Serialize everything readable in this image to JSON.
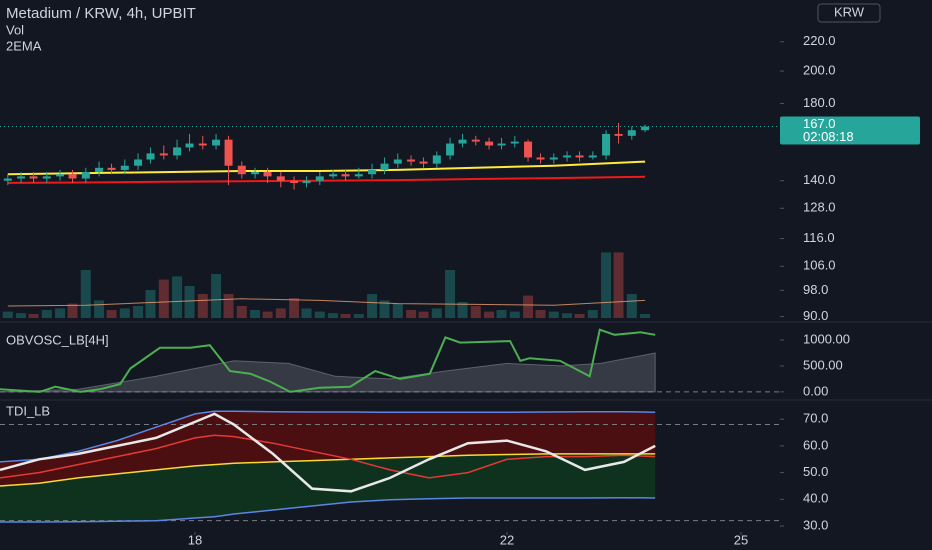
{
  "chart_data": [
    {
      "type": "candlestick",
      "title": "Metadium / KRW, 4h, UPBIT",
      "indicators": [
        "Vol",
        "2EMA"
      ],
      "currency": "KRW",
      "log": true,
      "ylim": [
        89,
        252
      ],
      "yticks": [
        {
          "value": 220,
          "label": "220.0"
        },
        {
          "value": 200,
          "label": "200.0"
        },
        {
          "value": 180,
          "label": "180.0"
        },
        {
          "value": 140,
          "label": "140.0"
        },
        {
          "value": 128,
          "label": "128.0"
        },
        {
          "value": 116,
          "label": "116.0"
        },
        {
          "value": 106,
          "label": "106.0"
        },
        {
          "value": 98,
          "label": "98.0"
        },
        {
          "value": 90,
          "label": "90.0"
        }
      ],
      "up_color": "#26a69a",
      "down_color": "#ef5350",
      "x": [
        15.6,
        15.77,
        15.93,
        16.1,
        16.27,
        16.43,
        16.6,
        16.77,
        16.93,
        17.1,
        17.27,
        17.43,
        17.6,
        17.77,
        17.93,
        18.1,
        18.27,
        18.43,
        18.6,
        18.77,
        18.93,
        19.1,
        19.27,
        19.43,
        19.6,
        19.77,
        19.93,
        20.1,
        20.27,
        20.43,
        20.6,
        20.77,
        20.93,
        21.1,
        21.27,
        21.43,
        21.6,
        21.77,
        21.93,
        22.1,
        22.27,
        22.43,
        22.6,
        22.77,
        22.93,
        23.1,
        23.27,
        23.43,
        23.6,
        23.77
      ],
      "open": [
        140,
        141,
        142,
        141,
        142,
        143,
        141,
        144,
        146,
        145,
        147,
        150,
        153,
        152,
        156,
        158,
        157,
        160,
        147,
        143,
        144,
        142,
        140,
        139,
        140,
        142,
        143,
        142,
        143,
        145,
        148,
        150,
        149,
        148,
        152,
        158,
        160,
        159,
        157,
        158,
        159,
        151,
        150,
        151,
        152,
        151,
        152,
        163,
        162,
        165
      ],
      "high": [
        143,
        144,
        144,
        144,
        145,
        145,
        146,
        149,
        148,
        150,
        153,
        156,
        157,
        160,
        163,
        162,
        163,
        162,
        149,
        146,
        146,
        144,
        142,
        142,
        144,
        145,
        145,
        146,
        148,
        151,
        153,
        152,
        151,
        154,
        161,
        163,
        162,
        161,
        161,
        162,
        160,
        153,
        153,
        154,
        154,
        154,
        165,
        169,
        167,
        168
      ],
      "low": [
        138,
        139,
        139,
        139,
        140,
        139,
        139,
        142,
        143,
        143,
        145,
        148,
        150,
        150,
        154,
        155,
        155,
        138,
        141,
        141,
        139,
        137,
        136,
        137,
        138,
        141,
        140,
        141,
        141,
        143,
        146,
        147,
        146,
        146,
        150,
        156,
        157,
        155,
        155,
        156,
        149,
        148,
        148,
        149,
        149,
        150,
        150,
        158,
        160,
        164
      ],
      "close": [
        141,
        142,
        141,
        142,
        143,
        141,
        144,
        146,
        145,
        147,
        150,
        153,
        152,
        156,
        158,
        157,
        160,
        147,
        143,
        144,
        142,
        140,
        139,
        140,
        142,
        143,
        142,
        143,
        145,
        148,
        150,
        149,
        148,
        152,
        158,
        160,
        159,
        157,
        158,
        159,
        151,
        150,
        151,
        152,
        151,
        152,
        163,
        162,
        165,
        167
      ],
      "last_label": "167.0",
      "countdown": "02:08:18",
      "series": [
        {
          "color": "#ffeb3b",
          "x": [
            15.6,
            16.6,
            17.6,
            18.6,
            19.6,
            20.6,
            21.6,
            22.6,
            23.77
          ],
          "values": [
            143,
            143.5,
            144,
            144.5,
            144.5,
            145,
            146,
            147,
            149
          ]
        },
        {
          "color": "#f01818",
          "x": [
            15.6,
            16.6,
            17.6,
            18.6,
            19.6,
            20.6,
            21.6,
            22.6,
            23.77
          ],
          "values": [
            139,
            139.2,
            139.5,
            139.8,
            140,
            140.3,
            140.8,
            141.2,
            141.8
          ]
        }
      ],
      "volume": {
        "ylim": [
          0,
          100
        ],
        "values": [
          8,
          6,
          5,
          10,
          12,
          18,
          60,
          22,
          10,
          12,
          15,
          35,
          48,
          52,
          40,
          30,
          55,
          30,
          15,
          10,
          8,
          12,
          25,
          12,
          8,
          6,
          5,
          5,
          30,
          22,
          18,
          10,
          8,
          12,
          60,
          20,
          15,
          8,
          10,
          8,
          28,
          10,
          8,
          6,
          5,
          10,
          82,
          82,
          30,
          5
        ],
        "ma": {
          "color": "#f0a070",
          "x": [
            15.6,
            16.6,
            17.6,
            18.6,
            19.6,
            20.6,
            21.6,
            22.6,
            23.77
          ],
          "values": [
            15,
            16,
            20,
            24,
            22,
            18,
            17,
            16,
            22
          ]
        }
      }
    },
    {
      "type": "oscillator",
      "title": "OBVOSC_LB[4H]",
      "ylim": [
        -80,
        1290
      ],
      "yticks": [
        {
          "value": 1000,
          "label": "1000.00"
        },
        {
          "value": 500,
          "label": "500.00"
        },
        {
          "value": 0,
          "label": "0.00"
        }
      ],
      "hlines": [
        0
      ],
      "series": [
        {
          "color": "#4caf50",
          "x": [
            15.5,
            16.01,
            16.21,
            16.53,
            16.78,
            17.04,
            17.17,
            17.55,
            17.94,
            18.19,
            18.45,
            18.71,
            18.96,
            19.22,
            19.6,
            19.99,
            20.31,
            20.63,
            21.01,
            21.21,
            21.4,
            22.04,
            22.17,
            22.29,
            22.68,
            23.06,
            23.19,
            23.38,
            23.71,
            23.9
          ],
          "values": [
            50,
            0,
            100,
            0,
            50,
            150,
            450,
            850,
            850,
            900,
            400,
            350,
            200,
            0,
            80,
            100,
            400,
            250,
            350,
            1050,
            950,
            980,
            600,
            650,
            600,
            300,
            1200,
            1100,
            1150,
            1100
          ]
        }
      ],
      "area": {
        "color": "#787b86",
        "x": [
          15.5,
          16.5,
          17.5,
          18.5,
          19.2,
          19.8,
          20.5,
          21.2,
          22,
          22.7,
          23.2,
          23.9
        ],
        "values": [
          0,
          50,
          300,
          600,
          550,
          300,
          250,
          400,
          550,
          500,
          550,
          750
        ]
      }
    },
    {
      "type": "tdi",
      "title": "TDI_LB",
      "ylim": [
        28.5,
        75.7
      ],
      "yticks": [
        {
          "value": 70,
          "label": "70.0"
        },
        {
          "value": 60,
          "label": "60.0"
        },
        {
          "value": 50,
          "label": "50.0"
        },
        {
          "value": 40,
          "label": "40.0"
        },
        {
          "value": 30,
          "label": "30.0"
        }
      ],
      "hlines": [
        68,
        32
      ],
      "xlim": [
        15.5,
        25.5
      ],
      "xticks": [
        18,
        22,
        25
      ],
      "upper_fill": "#5a0e0e",
      "lower_fill": "#0e3a1e",
      "x": [
        15.5,
        16,
        16.5,
        17,
        17.5,
        18,
        18.25,
        18.5,
        19,
        19.5,
        20,
        20.5,
        21,
        21.5,
        22,
        22.5,
        23,
        23.5,
        23.9
      ],
      "series": [
        {
          "color": "#5b86e5",
          "values": [
            54,
            55,
            58,
            62,
            67,
            72,
            73,
            73,
            72.8,
            72.7,
            72.7,
            72.6,
            72.6,
            72.6,
            72.6,
            72.7,
            72.8,
            72.8,
            72.6
          ]
        },
        {
          "color": "#5b86e5",
          "values": [
            31.5,
            31.5,
            31.6,
            31.8,
            32,
            33,
            33.5,
            34.5,
            36,
            37.5,
            39,
            39.8,
            40.2,
            40.5,
            40.5,
            40.5,
            40.5,
            40.6,
            40.5
          ]
        },
        {
          "color": "#fdd835",
          "values": [
            45,
            46,
            48,
            49.5,
            51,
            52.5,
            53,
            53.5,
            54,
            54.5,
            55,
            55.5,
            56,
            56.5,
            56.8,
            57,
            57,
            57,
            57
          ]
        },
        {
          "color": "#e53935",
          "values": [
            48,
            50,
            53,
            56,
            59,
            63,
            64,
            63.5,
            61,
            58,
            55,
            51,
            48,
            50,
            55,
            56,
            56,
            56.5,
            56
          ]
        },
        {
          "color": "#e8e8e8",
          "values": [
            51,
            55,
            57,
            60,
            63,
            69,
            72,
            68,
            57,
            44,
            43,
            48,
            55,
            61,
            62,
            58,
            51,
            54,
            60
          ]
        }
      ]
    }
  ]
}
